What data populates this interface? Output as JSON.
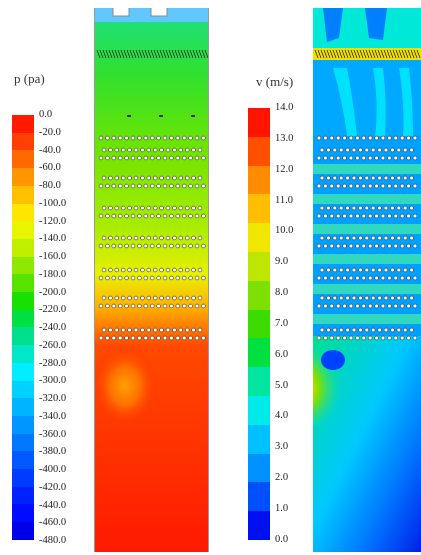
{
  "pressure_legend": {
    "title": "p (pa)",
    "ticks": [
      "0.0",
      "-20.0",
      "-40.0",
      "-60.0",
      "-80.0",
      "-100.0",
      "-120.0",
      "-140.0",
      "-160.0",
      "-180.0",
      "-200.0",
      "-220.0",
      "-240.0",
      "-260.0",
      "-280.0",
      "-300.0",
      "-320.0",
      "-340.0",
      "-360.0",
      "-380.0",
      "-400.0",
      "-420.0",
      "-440.0",
      "-460.0",
      "-480.0"
    ],
    "colors": [
      "#ff1a00",
      "#ff4000",
      "#ff6a00",
      "#ff9600",
      "#ffc000",
      "#ffe600",
      "#e8f500",
      "#c2ee00",
      "#8ee800",
      "#55e400",
      "#18e000",
      "#00e040",
      "#00e08a",
      "#00e8c8",
      "#00eeff",
      "#00d2ff",
      "#00b4ff",
      "#0096ff",
      "#0078ff",
      "#005aff",
      "#003cff",
      "#0022ff",
      "#000cff",
      "#0000e8"
    ]
  },
  "velocity_legend": {
    "title": "v (m/s)",
    "ticks": [
      "14.0",
      "13.0",
      "12.0",
      "11.0",
      "10.0",
      "9.0",
      "8.0",
      "7.0",
      "6.0",
      "5.0",
      "4.0",
      "3.0",
      "2.0",
      "1.0",
      "0.0"
    ],
    "colors": [
      "#ff1400",
      "#ff5000",
      "#ff8c00",
      "#ffbe00",
      "#f0e600",
      "#bde600",
      "#7ee000",
      "#3cdc00",
      "#00e040",
      "#00e6a0",
      "#00eaea",
      "#00c0ff",
      "#0090ff",
      "#0050ff",
      "#0010f0"
    ]
  },
  "icons": {
    "pressure_contour": "pressure-contour-field",
    "velocity_contour": "velocity-contour-field"
  }
}
